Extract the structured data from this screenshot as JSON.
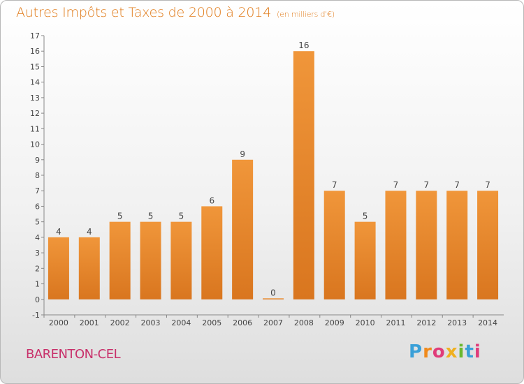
{
  "chart_data": {
    "type": "bar",
    "title": "Autres Impôts et Taxes de 2000 à 2014",
    "unit_note": "(en milliers d'€)",
    "categories": [
      "2000",
      "2001",
      "2002",
      "2003",
      "2004",
      "2005",
      "2006",
      "2007",
      "2008",
      "2009",
      "2010",
      "2011",
      "2012",
      "2013",
      "2014"
    ],
    "values": [
      4,
      4,
      5,
      5,
      5,
      6,
      9,
      0,
      16,
      7,
      5,
      7,
      7,
      7,
      7
    ],
    "data_labels": [
      "4",
      "4",
      "5",
      "5",
      "5",
      "6",
      "9",
      "0",
      "16",
      "7",
      "5",
      "7",
      "7",
      "7",
      "7"
    ],
    "y_ticks": [
      "-1",
      "0",
      "1",
      "2",
      "3",
      "4",
      "5",
      "6",
      "7",
      "8",
      "9",
      "10",
      "11",
      "12",
      "13",
      "14",
      "15",
      "16",
      "17"
    ],
    "ylim": [
      -1,
      17
    ],
    "grid": false,
    "bar_color": "#f0963a",
    "bar_color_dark": "#d9761f"
  },
  "footer": {
    "commune": "BARENTON-CEL",
    "logo_letters": [
      "P",
      "r",
      "o",
      "x",
      "i",
      "t",
      "i"
    ],
    "logo_colors": [
      "#3aa0d8",
      "#f08a1c",
      "#e03c7a",
      "#f0b020",
      "#6ab82e",
      "#3aa0d8",
      "#e03c7a"
    ]
  }
}
